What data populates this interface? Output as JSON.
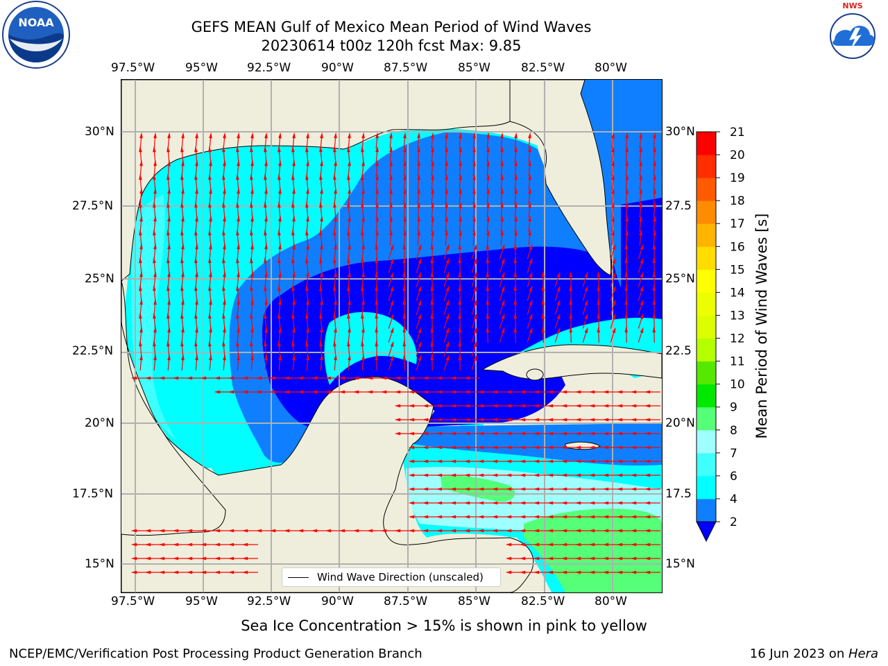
{
  "title_line1": "GEFS MEAN Gulf of Mexico Mean Period of Wind Waves",
  "title_line2": "20230614 t00z 120h fcst   Max: 9.85",
  "lon_ticks": [
    "97.5°W",
    "95°W",
    "92.5°W",
    "90°W",
    "87.5°W",
    "85°W",
    "82.5°W",
    "80°W"
  ],
  "lat_ticks_left": [
    "30°N",
    "27.5°N",
    "25°N",
    "22.5°N",
    "20°N",
    "17.5°N",
    "15°N"
  ],
  "lat_ticks_right": [
    "30°N",
    "27.5",
    "25°N",
    "22.5",
    "20°N",
    "17.5",
    "15°N"
  ],
  "colorbar": {
    "label": "Mean Period of Wind Waves [s]",
    "ticks": [
      "2",
      "4",
      "6",
      "7",
      "8",
      "9",
      "10",
      "11",
      "12",
      "13",
      "14",
      "15",
      "16",
      "17",
      "18",
      "19",
      "20",
      "21"
    ],
    "colors": [
      "#0000ff",
      "#0f7fff",
      "#00ffff",
      "#3fffff",
      "#9fffff",
      "#55ff77",
      "#00e800",
      "#55e800",
      "#b4ff00",
      "#dcff00",
      "#ecff00",
      "#ffff00",
      "#ffdd00",
      "#ffb400",
      "#ff8c00",
      "#ff5a00",
      "#ff2d00",
      "#ff0000"
    ]
  },
  "legend_label": "Wind Wave Direction (unscaled)",
  "note": "Sea Ice Concentration > 15% is shown in pink to yellow",
  "footer_left": "NCEP/EMC/Verification Post Processing Product Generation Branch",
  "footer_date": "16 Jun 2023 on ",
  "footer_host": "Hera",
  "logo_left_text": "NOAA",
  "logo_right_text": "NATIONAL WEATHER SERVICE"
}
